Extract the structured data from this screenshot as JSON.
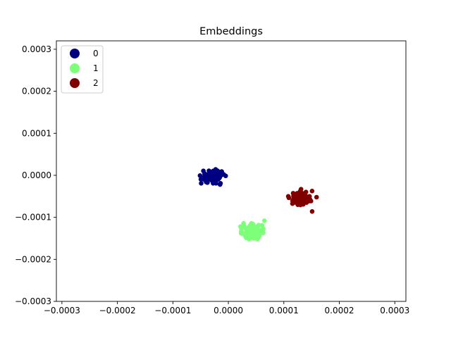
{
  "chart_data": {
    "type": "scatter",
    "title": "Embeddings",
    "xlabel": "",
    "ylabel": "",
    "xlim": [
      -0.00031,
      0.00032
    ],
    "ylim": [
      -0.0003,
      0.00032
    ],
    "xticks": [
      -0.0003,
      -0.0002,
      -0.0001,
      0.0,
      0.0001,
      0.0002,
      0.0003
    ],
    "xtick_labels": [
      "−0.0003",
      "−0.0002",
      "−0.0001",
      "0.0000",
      "0.0001",
      "0.0002",
      "0.0003"
    ],
    "yticks": [
      -0.0003,
      -0.0002,
      -0.0001,
      0.0,
      0.0001,
      0.0002,
      0.0003
    ],
    "ytick_labels": [
      "−0.0003",
      "−0.0002",
      "−0.0001",
      "0.0000",
      "0.0001",
      "0.0002",
      "0.0003"
    ],
    "grid": false,
    "legend_position": "upper-left",
    "series": [
      {
        "name": "0",
        "color": "#000080",
        "center": [
          -2.8e-05,
          -2.5e-06
        ],
        "spread": [
          1.05e-05,
          7.5e-06
        ],
        "count": 110,
        "outliers": [
          [
            -4.8e-05,
            -5.5e-06
          ],
          [
            -4.5e-05,
            1.05e-05
          ],
          [
            -1.2e-05,
            9e-06
          ],
          [
            -1.5e-05,
            -2.2e-05
          ]
        ]
      },
      {
        "name": "1",
        "color": "#7dff7a",
        "center": [
          4.3e-05,
          -0.000133
        ],
        "spread": [
          9e-06,
          8.5e-06
        ],
        "count": 100,
        "outliers": [
          [
            6.5e-05,
            -0.000108
          ],
          [
            2.2e-05,
            -0.000122
          ],
          [
            5.5e-05,
            -0.000147
          ],
          [
            3.2e-05,
            -0.000148
          ]
        ]
      },
      {
        "name": "2",
        "color": "#800000",
        "center": [
          0.00013,
          -5.4e-05
        ],
        "spread": [
          9.5e-06,
          7.5e-06
        ],
        "count": 110,
        "outliers": [
          [
            0.000159,
            -5.2e-05
          ],
          [
            0.000151,
            -8.6e-05
          ],
          [
            0.000108,
            -5e-05
          ],
          [
            0.000131,
            -3.3e-05
          ]
        ]
      }
    ]
  }
}
